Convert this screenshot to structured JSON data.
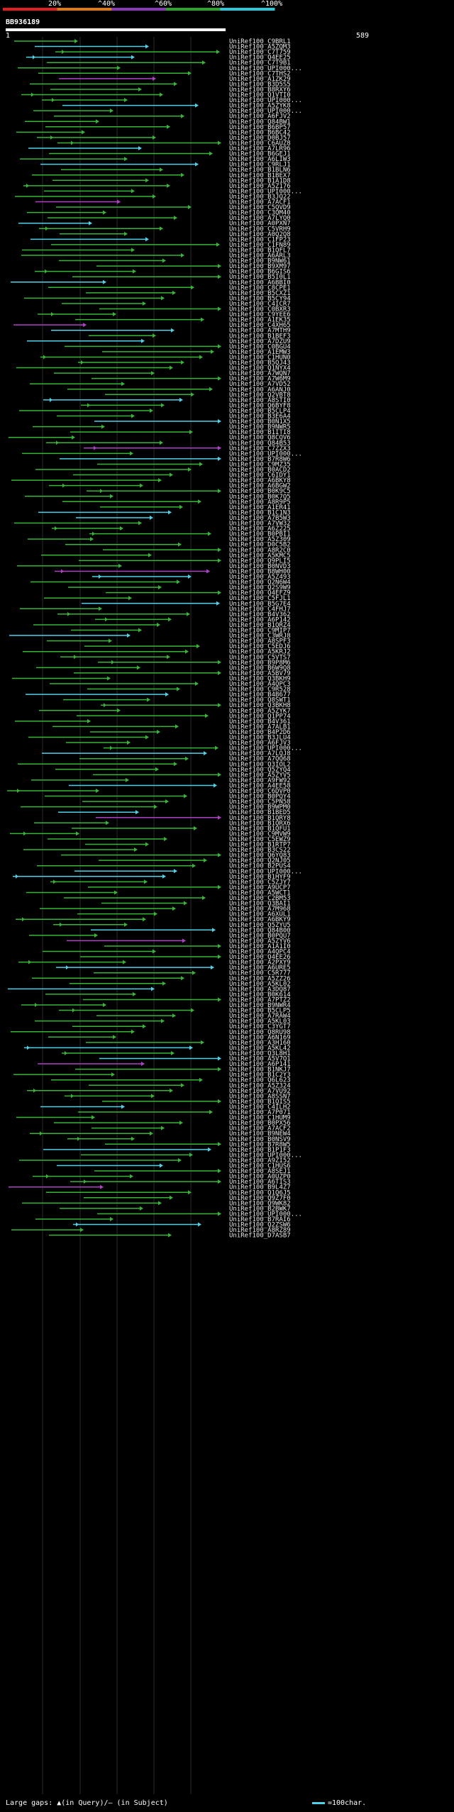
{
  "scale_labels": [
    "20%",
    "^40%",
    "^60%",
    "^80%",
    "^100%"
  ],
  "scale_colors": [
    "#e02020",
    "#e07a10",
    "#8a3ab9",
    "#2aa52a",
    "#2ac8d8"
  ],
  "query_id": "BB936189",
  "range_start": "1",
  "range_end": "589",
  "legend": {
    "large_gaps": "Large gaps: ▲(in Query)/— (in Subject)",
    "scale": "=100char."
  },
  "hits": [
    "UniRef100_C9BRL1",
    "UniRef100_A5ZQM3",
    "UniRef100_C7T759",
    "UniRef100_Q4EE25",
    "UniRef100_C7T9B1",
    "UniRef100_UPI000...",
    "UniRef100_C7THS2",
    "UniRef100_A1ZK29",
    "UniRef100_B3D5S5",
    "UniRef100_B8RXY6",
    "UniRef100_Q1VTI0",
    "UniRef100_UPI000...",
    "UniRef100_A5ZYK8",
    "UniRef100_UPI000...",
    "UniRef100_A6FJV2",
    "UniRef100_Q84BW1",
    "UniRef100_B6BP57",
    "UniRef100_B6BC42",
    "UniRef100_D0BJ57",
    "UniRef100_C6AUZ8",
    "UniRef100_A7LR96",
    "UniRef100_B6GEJ1",
    "UniRef100_A6LIW3",
    "UniRef100_C9RLJ1",
    "UniRef100_B1BLN6",
    "UniRef100_B1BEX7",
    "UniRef100_B1A1D8",
    "UniRef100_A5Z176",
    "UniRef100_UPI000...",
    "UniRef100_B3JQ22",
    "UniRef100_A7ACF1",
    "UniRef100_C5QVD9",
    "UniRef100_C3QM40",
    "UniRef100_A7LYQ0",
    "UniRef100_A0PXN7",
    "UniRef100_C5VRH9",
    "UniRef100_A0Q2Q8",
    "UniRef100_C1FP23",
    "UniRef100_C1FN89",
    "UniRef100_B1QFL7",
    "UniRef100_A6ARL3",
    "UniRef100_B9NW61",
    "UniRef100_B9XM97",
    "UniRef100_B6GIS6",
    "UniRef100_B5I0L1",
    "UniRef100_A6BBI0",
    "UniRef100_C8CPE1",
    "UniRef100_B5CXZ1",
    "UniRef100_B5CY94",
    "UniRef100_C4ICR7",
    "UniRef100_C0BXR3",
    "UniRef100_C9YEE6",
    "UniRef100_A1EK35",
    "UniRef100_C4XH65",
    "UniRef100_A7MTH9",
    "UniRef100_B1BEF3",
    "UniRef100_A7DZU9",
    "UniRef100_C0BGU4",
    "UniRef100_A1EMW3",
    "UniRef100_C1HUN0",
    "UniRef100_B5QJ43",
    "UniRef100_Q1NYX4",
    "UniRef100_A7WQN7",
    "UniRef100_A7W6M9",
    "UniRef100_A7VD52",
    "UniRef100_A6ANJ0",
    "UniRef100_Q2VBT8",
    "UniRef100_A8STI0",
    "UniRef100_Q6BYF8",
    "UniRef100_B5CLP4",
    "UniRef100_B3E6A4",
    "UniRef100_B0N1X5",
    "UniRef100_B9NWR5",
    "UniRef100_B1ITI8",
    "UniRef100_Q8CQV6",
    "UniRef100_Q84B53",
    "UniRef100_C7ZZX3",
    "UniRef100_UPI000...",
    "UniRef100_B7R8W6",
    "UniRef100_C9MZ35",
    "UniRef100_B0ACD2",
    "UniRef100_C6IDY1",
    "UniRef100_A6BKY8",
    "UniRef100_A6BGW2",
    "UniRef100_B0K9C5",
    "UniRef100_B0K7Q5",
    "UniRef100_A8R9P5",
    "UniRef100_A1ER41",
    "UniRef100_B1C1N3",
    "UniRef100_A7B5W3",
    "UniRef100_A7VW32",
    "UniRef100_A6Z225",
    "UniRef100_B0PBI1",
    "UniRef100_A5Z309",
    "UniRef100_D0C5B2",
    "UniRef100_A8R2C0",
    "UniRef100_A5KMC5",
    "UniRef100_Q9PLI5",
    "UniRef100_B0NVD3",
    "UniRef100_B8WH00",
    "UniRef100_A5Z493",
    "UniRef100_Q2N6W4",
    "UniRef100_Q2S9W9",
    "UniRef100_Q4EFZ9",
    "UniRef100_C5FJL1",
    "UniRef100_B5G7E4",
    "UniRef100_C4FHJ7",
    "UniRef100_B4V362",
    "UniRef100_A6P142",
    "UniRef100_B1QRZ4",
    "UniRef100_C9MIP7",
    "UniRef100_C3WRJ8",
    "UniRef100_A8SPF3",
    "UniRef100_C5EDJ6",
    "UniRef100_A5KRJ2",
    "UniRef100_C5VTS7",
    "UniRef100_B9P8M6",
    "UniRef100_B6W9Q8",
    "UniRef100_A5BV79",
    "UniRef100_Q3BKH9",
    "UniRef100_A4QPC3",
    "UniRef100_C9R528",
    "UniRef100_B4B677",
    "UniRef100_Q8SWT1",
    "UniRef100_Q3BKH8",
    "UniRef100_A5ZYK7",
    "UniRef100_Q1PP74",
    "UniRef100_B4V361",
    "UniRef100_A7ALB1",
    "UniRef100_B4P2D6",
    "UniRef100_B3JLU4",
    "UniRef100_A6FJV3",
    "UniRef100_UPI000...",
    "UniRef100_A7LQJ8",
    "UniRef100_A7QQ68",
    "UniRef100_Q3IOL2",
    "UniRef100_Q5ZYQ4",
    "UniRef100_A5ZYV5",
    "UniRef100_A9FW92",
    "UniRef100_A4EE58",
    "UniRef100_C6DVP0",
    "UniRef100_B0PQY4",
    "UniRef100_C5PN58",
    "UniRef100_B9WPM0",
    "UniRef100_B1BED5",
    "UniRef100_B1QRY8",
    "UniRef100_B1QRX6",
    "UniRef100_B1QFU1",
    "UniRef100_C9MVW9",
    "UniRef100_C5EWZ9",
    "UniRef100_B1RTP7",
    "UniRef100_B3CS22",
    "UniRef100_Q6YQ83",
    "UniRef100_Q2NJ05",
    "UniRef100_B2PUS4",
    "UniRef100_UPI000...",
    "UniRef100_B1HYF9",
    "UniRef100_C5ZJY7",
    "UniRef100_A9UCP7",
    "UniRef100_A5WCT1",
    "UniRef100_C2BM53",
    "UniRef100_Q3BAI1",
    "UniRef100_A7M968",
    "UniRef100_A6XUL1",
    "UniRef100_A6BKY9",
    "UniRef100_Q5ZYU5",
    "UniRef100_Q84B00",
    "UniRef100_B0PQU7",
    "UniRef100_A5ZYV6",
    "UniRef100_A1A1I0",
    "UniRef100_A4QPC4",
    "UniRef100_Q4EE26",
    "UniRef100_A2PXY9",
    "UniRef100_A6URE5",
    "UniRef100_C5R777",
    "UniRef100_A5ZZ26",
    "UniRef100_A5KL02",
    "UniRef100_A3DQ87",
    "UniRef100_B0K614",
    "UniRef100_A7PTZ2",
    "UniRef100_B9NWR4",
    "UniRef100_B5CLP5",
    "UniRef100_A7RAW4",
    "UniRef100_A5KL03",
    "UniRef100_C3YGT7",
    "UniRef100_Q8RU98",
    "UniRef100_A6N169",
    "UniRef100_A3H160",
    "UniRef100_A5KL42",
    "UniRef100_Q3L8H1",
    "UniRef100_A5V7Q1",
    "UniRef100_A6P141",
    "UniRef100_B1NKJ7",
    "UniRef100_B1C2Y3",
    "UniRef100_Q6L623",
    "UniRef100_A5Z324",
    "UniRef100_A7VU92",
    "UniRef100_A8SSN7",
    "UniRef100_B1QIS5",
    "UniRef100_C4ILH2",
    "UniRef100_A7P071",
    "UniRef100_C1HUM9",
    "UniRef100_B0PX56",
    "UniRef100_A7ACF2",
    "UniRef100_B9NEW4",
    "UniRef100_B0NSV9",
    "UniRef100_B7R8W5",
    "UniRef100_B1P1F3",
    "UniRef100_UPI000...",
    "UniRef100_A9ZI52",
    "UniRef100_C1HUS6",
    "UniRef100_A8SEJ1",
    "UniRef100_A0UZP0",
    "UniRef100_A6TIS3",
    "UniRef100_B9L4Z7",
    "UniRef100_Q1Q6J5",
    "UniRef100_Q9Z7F0",
    "UniRef100_Q9WK82",
    "UniRef100_B2BWK7",
    "UniRef100_UPI000...",
    "UniRef100_B7RAI6",
    "UniRef100_Q2ZSW6",
    "UniRef100_A8RZ89",
    "UniRef100_D7ASB7"
  ]
}
